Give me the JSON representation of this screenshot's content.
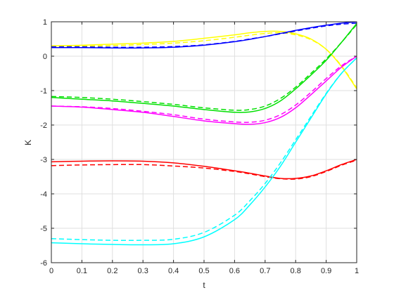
{
  "chart_data": {
    "type": "line",
    "title": "",
    "xlabel": "t",
    "ylabel": "K",
    "xlim": [
      0,
      1
    ],
    "ylim": [
      -6,
      1
    ],
    "xticks": [
      0,
      0.1,
      0.2,
      0.3,
      0.4,
      0.5,
      0.6,
      0.7,
      0.8,
      0.9,
      1
    ],
    "xtick_labels": [
      "0",
      "0.1",
      "0.2",
      "0.3",
      "0.4",
      "0.5",
      "0.6",
      "0.7",
      "0.8",
      "0.9",
      "1"
    ],
    "yticks": [
      -6,
      -5,
      -4,
      -3,
      -2,
      -1,
      0,
      1
    ],
    "ytick_labels": [
      "-6",
      "-5",
      "-4",
      "-3",
      "-2",
      "-1",
      "0",
      "1"
    ],
    "grid": true,
    "legend": "none",
    "x": [
      0,
      0.1,
      0.2,
      0.3,
      0.4,
      0.5,
      0.6,
      0.65,
      0.7,
      0.75,
      0.8,
      0.85,
      0.9,
      0.95,
      1
    ],
    "series": [
      {
        "color": "#ffff00",
        "style": "solid",
        "values": [
          0.3,
          0.32,
          0.35,
          0.38,
          0.43,
          0.52,
          0.62,
          0.68,
          0.72,
          0.72,
          0.65,
          0.5,
          0.2,
          -0.3,
          -0.95
        ]
      },
      {
        "color": "#ffff00",
        "style": "dashed",
        "values": [
          0.28,
          0.29,
          0.31,
          0.34,
          0.38,
          0.45,
          0.55,
          0.61,
          0.66,
          0.68,
          0.62,
          0.48,
          0.2,
          -0.28,
          -0.92
        ]
      },
      {
        "color": "#0000ff",
        "style": "solid",
        "values": [
          0.25,
          0.25,
          0.24,
          0.24,
          0.26,
          0.32,
          0.42,
          0.49,
          0.57,
          0.66,
          0.75,
          0.83,
          0.9,
          0.96,
          1.0
        ]
      },
      {
        "color": "#0000ff",
        "style": "dashed",
        "values": [
          0.27,
          0.27,
          0.26,
          0.26,
          0.28,
          0.33,
          0.43,
          0.5,
          0.57,
          0.65,
          0.73,
          0.81,
          0.88,
          0.93,
          0.96
        ]
      },
      {
        "color": "#00e000",
        "style": "solid",
        "values": [
          -1.2,
          -1.25,
          -1.3,
          -1.37,
          -1.45,
          -1.55,
          -1.63,
          -1.62,
          -1.52,
          -1.3,
          -0.95,
          -0.55,
          -0.12,
          0.4,
          0.95
        ]
      },
      {
        "color": "#00e000",
        "style": "dashed",
        "values": [
          -1.17,
          -1.2,
          -1.25,
          -1.32,
          -1.4,
          -1.5,
          -1.57,
          -1.55,
          -1.45,
          -1.23,
          -0.9,
          -0.5,
          -0.08,
          0.4,
          0.92
        ]
      },
      {
        "color": "#ff00ff",
        "style": "solid",
        "values": [
          -1.45,
          -1.48,
          -1.55,
          -1.63,
          -1.75,
          -1.88,
          -1.96,
          -1.98,
          -1.93,
          -1.78,
          -1.5,
          -1.12,
          -0.72,
          -0.32,
          0.0
        ]
      },
      {
        "color": "#ff00ff",
        "style": "dashed",
        "values": [
          -1.45,
          -1.47,
          -1.52,
          -1.6,
          -1.7,
          -1.83,
          -1.91,
          -1.92,
          -1.86,
          -1.7,
          -1.42,
          -1.05,
          -0.65,
          -0.28,
          0.0
        ]
      },
      {
        "color": "#ff0000",
        "style": "solid",
        "values": [
          -3.07,
          -3.05,
          -3.04,
          -3.05,
          -3.1,
          -3.2,
          -3.33,
          -3.4,
          -3.48,
          -3.55,
          -3.55,
          -3.48,
          -3.33,
          -3.15,
          -3.0
        ]
      },
      {
        "color": "#ff0000",
        "style": "dashed",
        "values": [
          -3.18,
          -3.16,
          -3.15,
          -3.15,
          -3.19,
          -3.25,
          -3.35,
          -3.42,
          -3.5,
          -3.56,
          -3.57,
          -3.5,
          -3.35,
          -3.17,
          -3.02
        ]
      },
      {
        "color": "#00ffff",
        "style": "solid",
        "values": [
          -5.42,
          -5.45,
          -5.47,
          -5.48,
          -5.45,
          -5.25,
          -4.75,
          -4.32,
          -3.8,
          -3.2,
          -2.5,
          -1.8,
          -1.1,
          -0.5,
          -0.05
        ]
      },
      {
        "color": "#00ffff",
        "style": "dashed",
        "values": [
          -5.3,
          -5.33,
          -5.35,
          -5.35,
          -5.32,
          -5.12,
          -4.62,
          -4.2,
          -3.7,
          -3.1,
          -2.43,
          -1.75,
          -1.08,
          -0.5,
          -0.05
        ]
      }
    ]
  }
}
